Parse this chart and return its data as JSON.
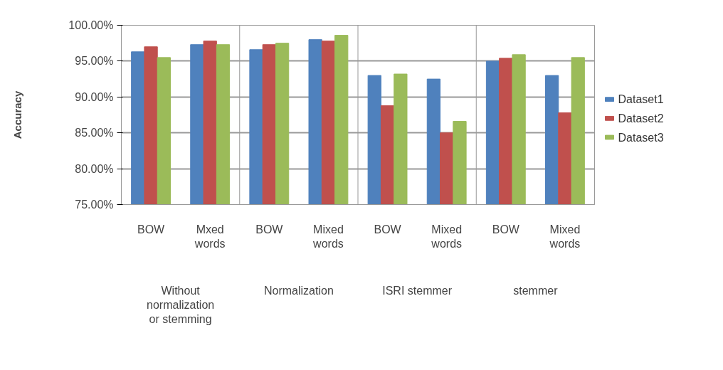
{
  "chart_data": {
    "type": "bar",
    "ylabel": "Accuracy",
    "categories": [
      "BOW",
      "Mxed words",
      "BOW",
      "Mixed words",
      "BOW",
      "Mixed words",
      "BOW",
      "Mixed words"
    ],
    "series": [
      {
        "name": "Dataset1",
        "color": "#4f81bd",
        "values": [
          96.3,
          97.3,
          96.6,
          98.0,
          93.0,
          92.5,
          95.0,
          93.0
        ]
      },
      {
        "name": "Dataset2",
        "color": "#c0504d",
        "values": [
          97.0,
          97.8,
          97.3,
          97.8,
          88.8,
          85.0,
          95.4,
          87.8
        ]
      },
      {
        "name": "Dataset3",
        "color": "#9bbb59",
        "values": [
          95.5,
          97.3,
          97.5,
          98.6,
          93.2,
          86.6,
          95.9,
          95.5
        ]
      }
    ],
    "annotations": [
      "Without normalization or stemming",
      "Normalization",
      "ISRI stemmer",
      "stemmer"
    ],
    "ylim": [
      75,
      100
    ],
    "yticks": [
      {
        "value": 75,
        "label": "75.00%"
      },
      {
        "value": 80,
        "label": "80.00%"
      },
      {
        "value": 85,
        "label": "85.00%"
      },
      {
        "value": 90,
        "label": "90.00%"
      },
      {
        "value": 95,
        "label": "95.00%"
      },
      {
        "value": 100,
        "label": "100.00%"
      }
    ],
    "grid": "y",
    "legend": "right"
  }
}
